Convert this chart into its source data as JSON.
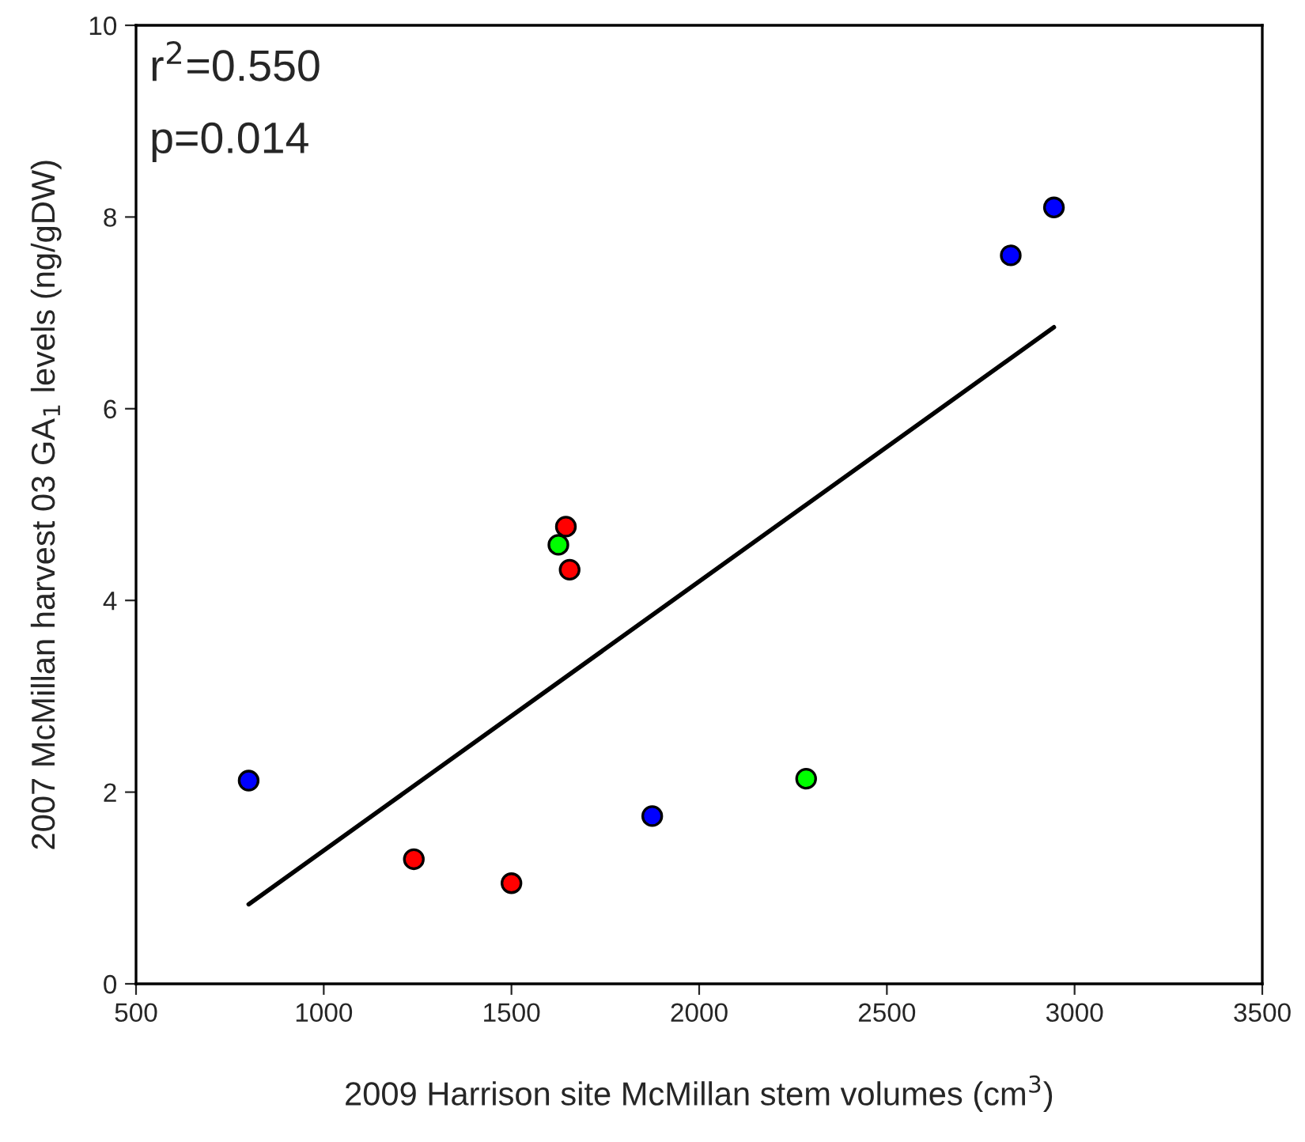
{
  "chart_data": {
    "type": "scatter",
    "xlabel": "2009 Harrison site McMillan stem volumes (cm$^{3}$)",
    "ylabel": "2007 McMillan harvest 03 GA$_{1}$ levels (ng/gDW)",
    "annotations": [
      "r$^{2}$=0.550",
      "p=0.014"
    ],
    "series": [
      {
        "color": "#0000ff",
        "x": [
          800,
          1875,
          2830,
          2945
        ],
        "values": [
          2.12,
          1.75,
          7.6,
          8.1
        ]
      },
      {
        "color": "#ff0000",
        "x": [
          1240,
          1500,
          1645,
          1655
        ],
        "values": [
          1.3,
          1.05,
          4.77,
          4.32
        ]
      },
      {
        "color": "#00ff00",
        "x": [
          1625,
          2285
        ],
        "values": [
          4.58,
          2.14
        ]
      },
      {
        "type": "line",
        "color": "#000000",
        "x": [
          800,
          2945
        ],
        "values": [
          0.83,
          6.85
        ],
        "marker": "none"
      }
    ],
    "marker": "circle",
    "xlim": [
      500,
      3500
    ],
    "xticks": [
      500,
      1000,
      1500,
      2000,
      2500,
      3000,
      3500
    ],
    "ylim": [
      0,
      10
    ],
    "yticks": [
      0,
      2,
      4,
      6,
      8,
      10
    ],
    "grid": false,
    "legend": false
  }
}
